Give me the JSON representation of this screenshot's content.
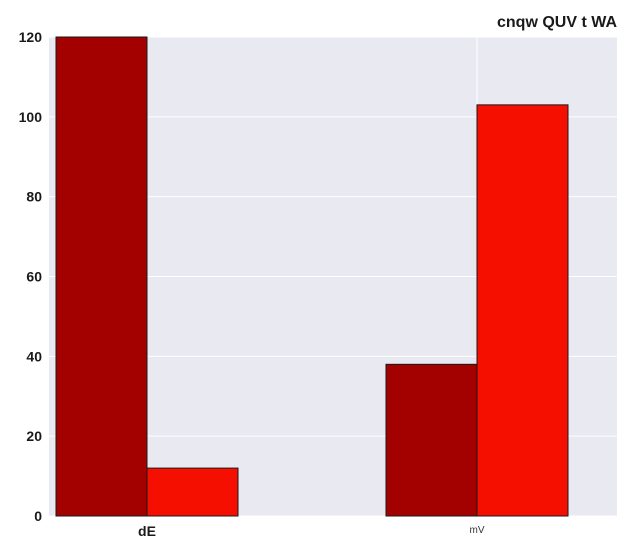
{
  "chart_data": {
    "type": "bar",
    "title": "cnqw  QUV t WA",
    "xlabel": "",
    "ylabel": "",
    "categories": [
      "dE",
      "mV"
    ],
    "series": [
      {
        "values": [
          120,
          38
        ],
        "color": "#a30000"
      },
      {
        "values": [
          12,
          103
        ],
        "color": "#f50f00"
      }
    ],
    "ylim": [
      0,
      120
    ],
    "yticks": [
      0,
      20,
      40,
      60,
      80,
      100,
      120
    ],
    "grid": true,
    "background": "#e9e9f1",
    "legend": "none"
  }
}
